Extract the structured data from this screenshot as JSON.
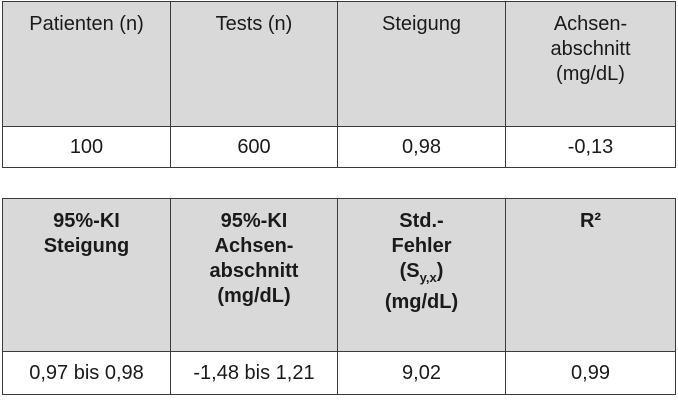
{
  "table1": {
    "header": [
      "Patienten (n)",
      "Tests (n)",
      "Steigung",
      "Achsen-\nabschnitt\n(mg/dL)"
    ],
    "rows": [
      [
        "100",
        "600",
        "0,98",
        "-0,13"
      ]
    ]
  },
  "table2": {
    "header": [
      "95%-KI\nSteigung",
      "95%-KI\nAchsen-\nabschnitt\n(mg/dL)",
      [
        "Std.-",
        "Fehler",
        "(S",
        "y,x",
        ")",
        "(mg/dL)"
      ],
      "R²"
    ],
    "rows": [
      [
        "0,97 bis 0,98",
        "-1,48 bis 1,21",
        "9,02",
        "0,99"
      ]
    ]
  }
}
